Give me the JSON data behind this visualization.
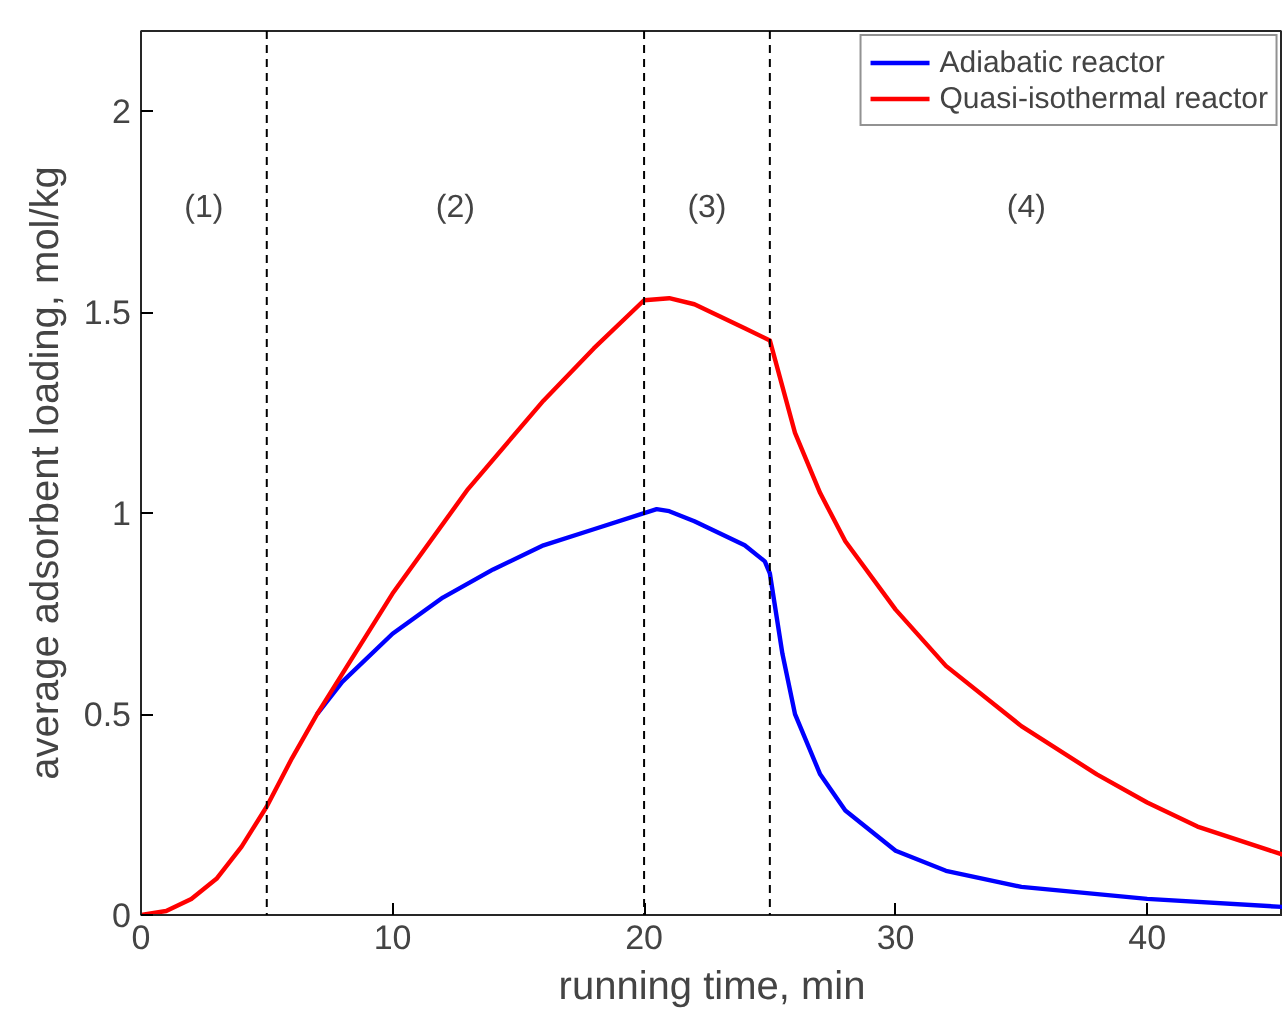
{
  "chart_data": {
    "type": "line",
    "xlabel": "running time, min",
    "ylabel": "average adsorbent loading, mol/kg",
    "xlim": [
      0,
      45.4
    ],
    "ylim": [
      0,
      2.2
    ],
    "xticks": [
      0,
      10,
      20,
      30,
      40
    ],
    "yticks": [
      0,
      0.5,
      1,
      1.5,
      2
    ],
    "grid": false,
    "legend": "top right",
    "line_style": "solid",
    "series": [
      {
        "name": "Adiabatic reactor",
        "color": "#0000ff",
        "x": [
          7,
          8,
          10,
          12,
          14,
          16,
          18,
          20,
          20.5,
          21,
          22,
          23,
          24,
          24.8,
          25,
          25.5,
          26,
          27,
          28,
          30,
          32,
          35,
          40,
          45.4
        ],
        "values": [
          0.5,
          0.58,
          0.7,
          0.79,
          0.86,
          0.92,
          0.96,
          1.0,
          1.01,
          1.005,
          0.98,
          0.95,
          0.92,
          0.88,
          0.85,
          0.65,
          0.5,
          0.35,
          0.26,
          0.16,
          0.11,
          0.07,
          0.04,
          0.02
        ]
      },
      {
        "name": "Quasi-isothermal reactor",
        "color": "#ff0000",
        "x": [
          0,
          1,
          2,
          3,
          4,
          5,
          6,
          7,
          10,
          13,
          16,
          18,
          20,
          21,
          22,
          23,
          24,
          25,
          26,
          27,
          28,
          30,
          32,
          35,
          38,
          40,
          42,
          45.4
        ],
        "values": [
          0,
          0.01,
          0.04,
          0.09,
          0.17,
          0.27,
          0.39,
          0.5,
          0.8,
          1.06,
          1.28,
          1.41,
          1.53,
          1.535,
          1.52,
          1.49,
          1.46,
          1.43,
          1.2,
          1.05,
          0.93,
          0.76,
          0.62,
          0.47,
          0.35,
          0.28,
          0.22,
          0.15
        ]
      }
    ],
    "ref_lines": [
      {
        "axis": "x",
        "value": 5,
        "color": "#000000",
        "line_style": "dashed"
      },
      {
        "axis": "x",
        "value": 20,
        "color": "#000000",
        "line_style": "dashed"
      },
      {
        "axis": "x",
        "value": 25,
        "color": "#000000",
        "line_style": "dashed"
      }
    ],
    "annotations": [
      "(1)",
      "(2)",
      "(3)",
      "(4)"
    ]
  }
}
